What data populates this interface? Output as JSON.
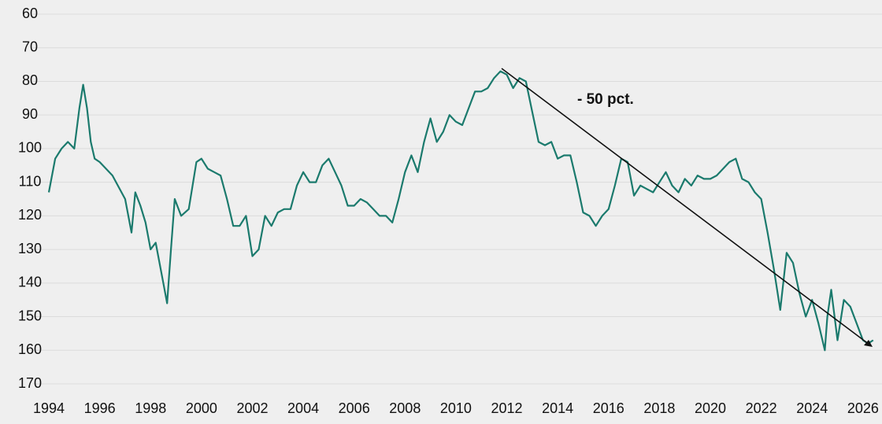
{
  "chart_data": {
    "type": "line",
    "annotation": "- 50 pct.",
    "x": [
      1994.0,
      1994.25,
      1994.5,
      1994.75,
      1995.0,
      1995.2,
      1995.35,
      1995.5,
      1995.65,
      1995.8,
      1996.0,
      1996.5,
      1997.0,
      1997.25,
      1997.4,
      1997.6,
      1997.8,
      1998.0,
      1998.2,
      1998.5,
      1998.65,
      1998.8,
      1998.95,
      1999.2,
      1999.5,
      1999.8,
      2000.0,
      2000.25,
      2000.5,
      2000.75,
      2001.0,
      2001.25,
      2001.5,
      2001.75,
      2002.0,
      2002.25,
      2002.5,
      2002.75,
      2003.0,
      2003.25,
      2003.5,
      2003.75,
      2004.0,
      2004.25,
      2004.5,
      2004.75,
      2005.0,
      2005.25,
      2005.5,
      2005.75,
      2006.0,
      2006.25,
      2006.5,
      2006.75,
      2007.0,
      2007.25,
      2007.5,
      2007.75,
      2008.0,
      2008.25,
      2008.5,
      2008.75,
      2009.0,
      2009.25,
      2009.5,
      2009.75,
      2010.0,
      2010.25,
      2010.5,
      2010.75,
      2011.0,
      2011.25,
      2011.5,
      2011.75,
      2012.0,
      2012.25,
      2012.5,
      2012.75,
      2013.0,
      2013.25,
      2013.5,
      2013.75,
      2014.0,
      2014.25,
      2014.5,
      2014.75,
      2015.0,
      2015.25,
      2015.5,
      2015.75,
      2016.0,
      2016.25,
      2016.5,
      2016.75,
      2017.0,
      2017.25,
      2017.5,
      2017.75,
      2018.0,
      2018.25,
      2018.5,
      2018.75,
      2019.0,
      2019.25,
      2019.5,
      2019.75,
      2020.0,
      2020.25,
      2020.5,
      2020.75,
      2021.0,
      2021.25,
      2021.5,
      2021.75,
      2022.0,
      2022.25,
      2022.5,
      2022.75,
      2023.0,
      2023.25,
      2023.5,
      2023.75,
      2024.0,
      2024.25,
      2024.5,
      2024.6,
      2024.75,
      2025.0,
      2025.25,
      2025.5,
      2025.75,
      2026.0,
      2026.2,
      2026.4
    ],
    "series": [
      {
        "color": "#1b7a6d",
        "values": [
          113,
          103,
          100,
          98,
          100,
          88,
          81,
          88,
          98,
          103,
          104,
          108,
          115,
          125,
          113,
          117,
          122,
          130,
          128,
          140,
          146,
          130,
          115,
          120,
          118,
          104,
          103,
          106,
          107,
          108,
          115,
          123,
          123,
          120,
          132,
          130,
          120,
          123,
          119,
          118,
          118,
          111,
          107,
          110,
          110,
          105,
          103,
          107,
          111,
          117,
          117,
          115,
          116,
          118,
          120,
          120,
          122,
          115,
          107,
          102,
          107,
          98,
          91,
          98,
          95,
          90,
          92,
          93,
          88,
          83,
          83,
          82,
          79,
          77,
          78,
          82,
          79,
          80,
          89,
          98,
          99,
          98,
          103,
          102,
          102,
          110,
          119,
          120,
          123,
          120,
          118,
          111,
          103,
          104,
          114,
          111,
          112,
          113,
          110,
          107,
          111,
          113,
          109,
          111,
          108,
          109,
          109,
          108,
          106,
          104,
          103,
          109,
          110,
          113,
          115,
          125,
          136,
          148,
          131,
          134,
          143,
          150,
          145,
          152,
          160,
          150,
          142,
          157,
          145,
          147,
          152,
          157,
          158,
          157
        ]
      }
    ],
    "xlim": [
      1994,
      2026.5
    ],
    "ylim": [
      60,
      170
    ],
    "y_inverted": true,
    "xticks": [
      1994,
      1996,
      1998,
      2000,
      2002,
      2004,
      2006,
      2008,
      2010,
      2012,
      2014,
      2016,
      2018,
      2020,
      2022,
      2024,
      2026
    ],
    "yticks": [
      60,
      70,
      80,
      90,
      100,
      110,
      120,
      130,
      140,
      150,
      160,
      170
    ],
    "grid": true
  }
}
